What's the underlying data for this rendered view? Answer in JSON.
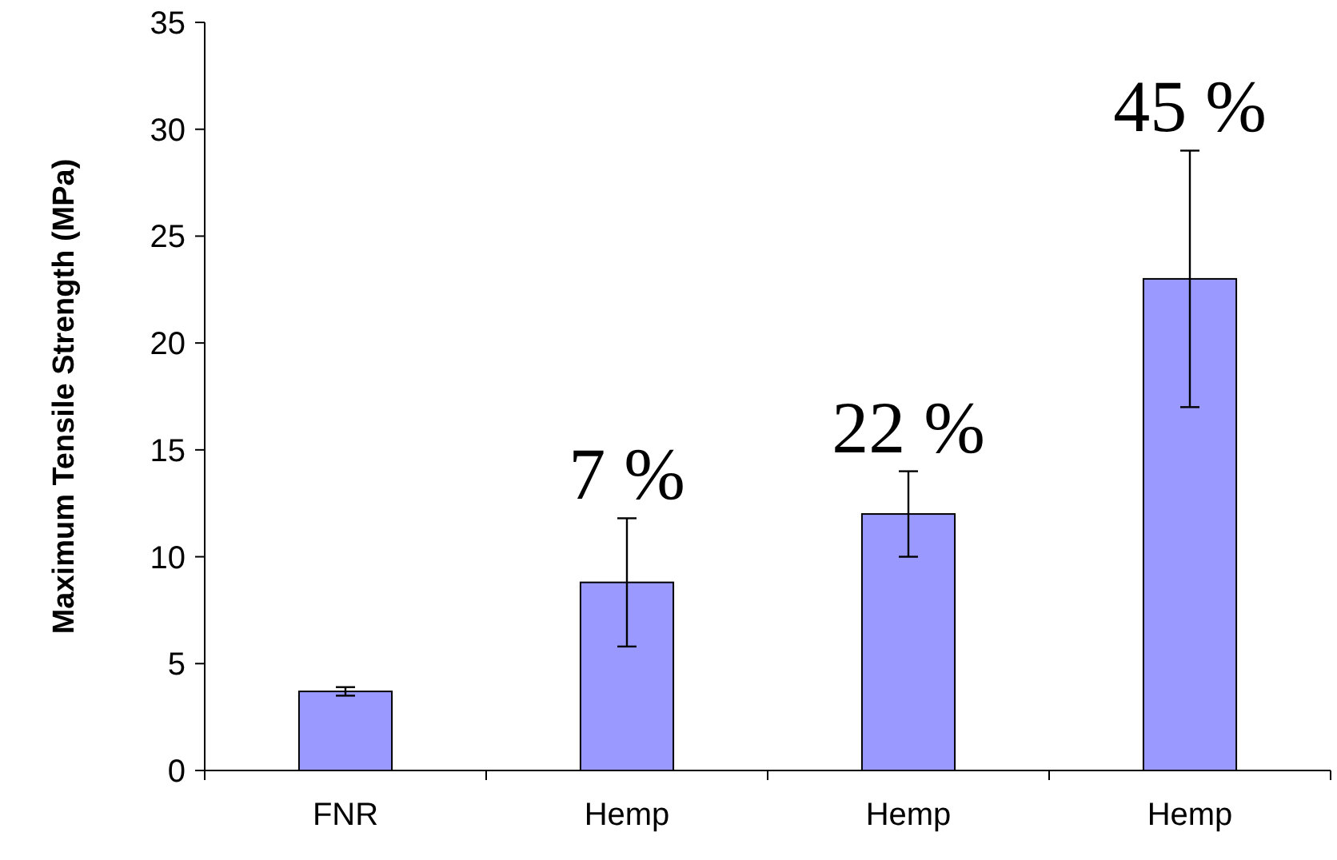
{
  "chart_data": {
    "type": "bar",
    "ylabel": "Maximum Tensile Strength (MPa)",
    "categories": [
      "FNR",
      "Hemp",
      "Hemp",
      "Hemp"
    ],
    "values": [
      3.7,
      8.8,
      12,
      23
    ],
    "errors": [
      0.2,
      3,
      2,
      6
    ],
    "annotations": [
      {
        "text": "7 %",
        "y": 11.8
      },
      {
        "text": "22 %",
        "y": 14
      },
      {
        "text": "45 %",
        "y": 29
      }
    ],
    "color": "#9999ff",
    "ylim": [
      0,
      35
    ],
    "yticks": [
      0,
      5,
      10,
      15,
      20,
      25,
      30,
      35
    ],
    "grid": false
  }
}
